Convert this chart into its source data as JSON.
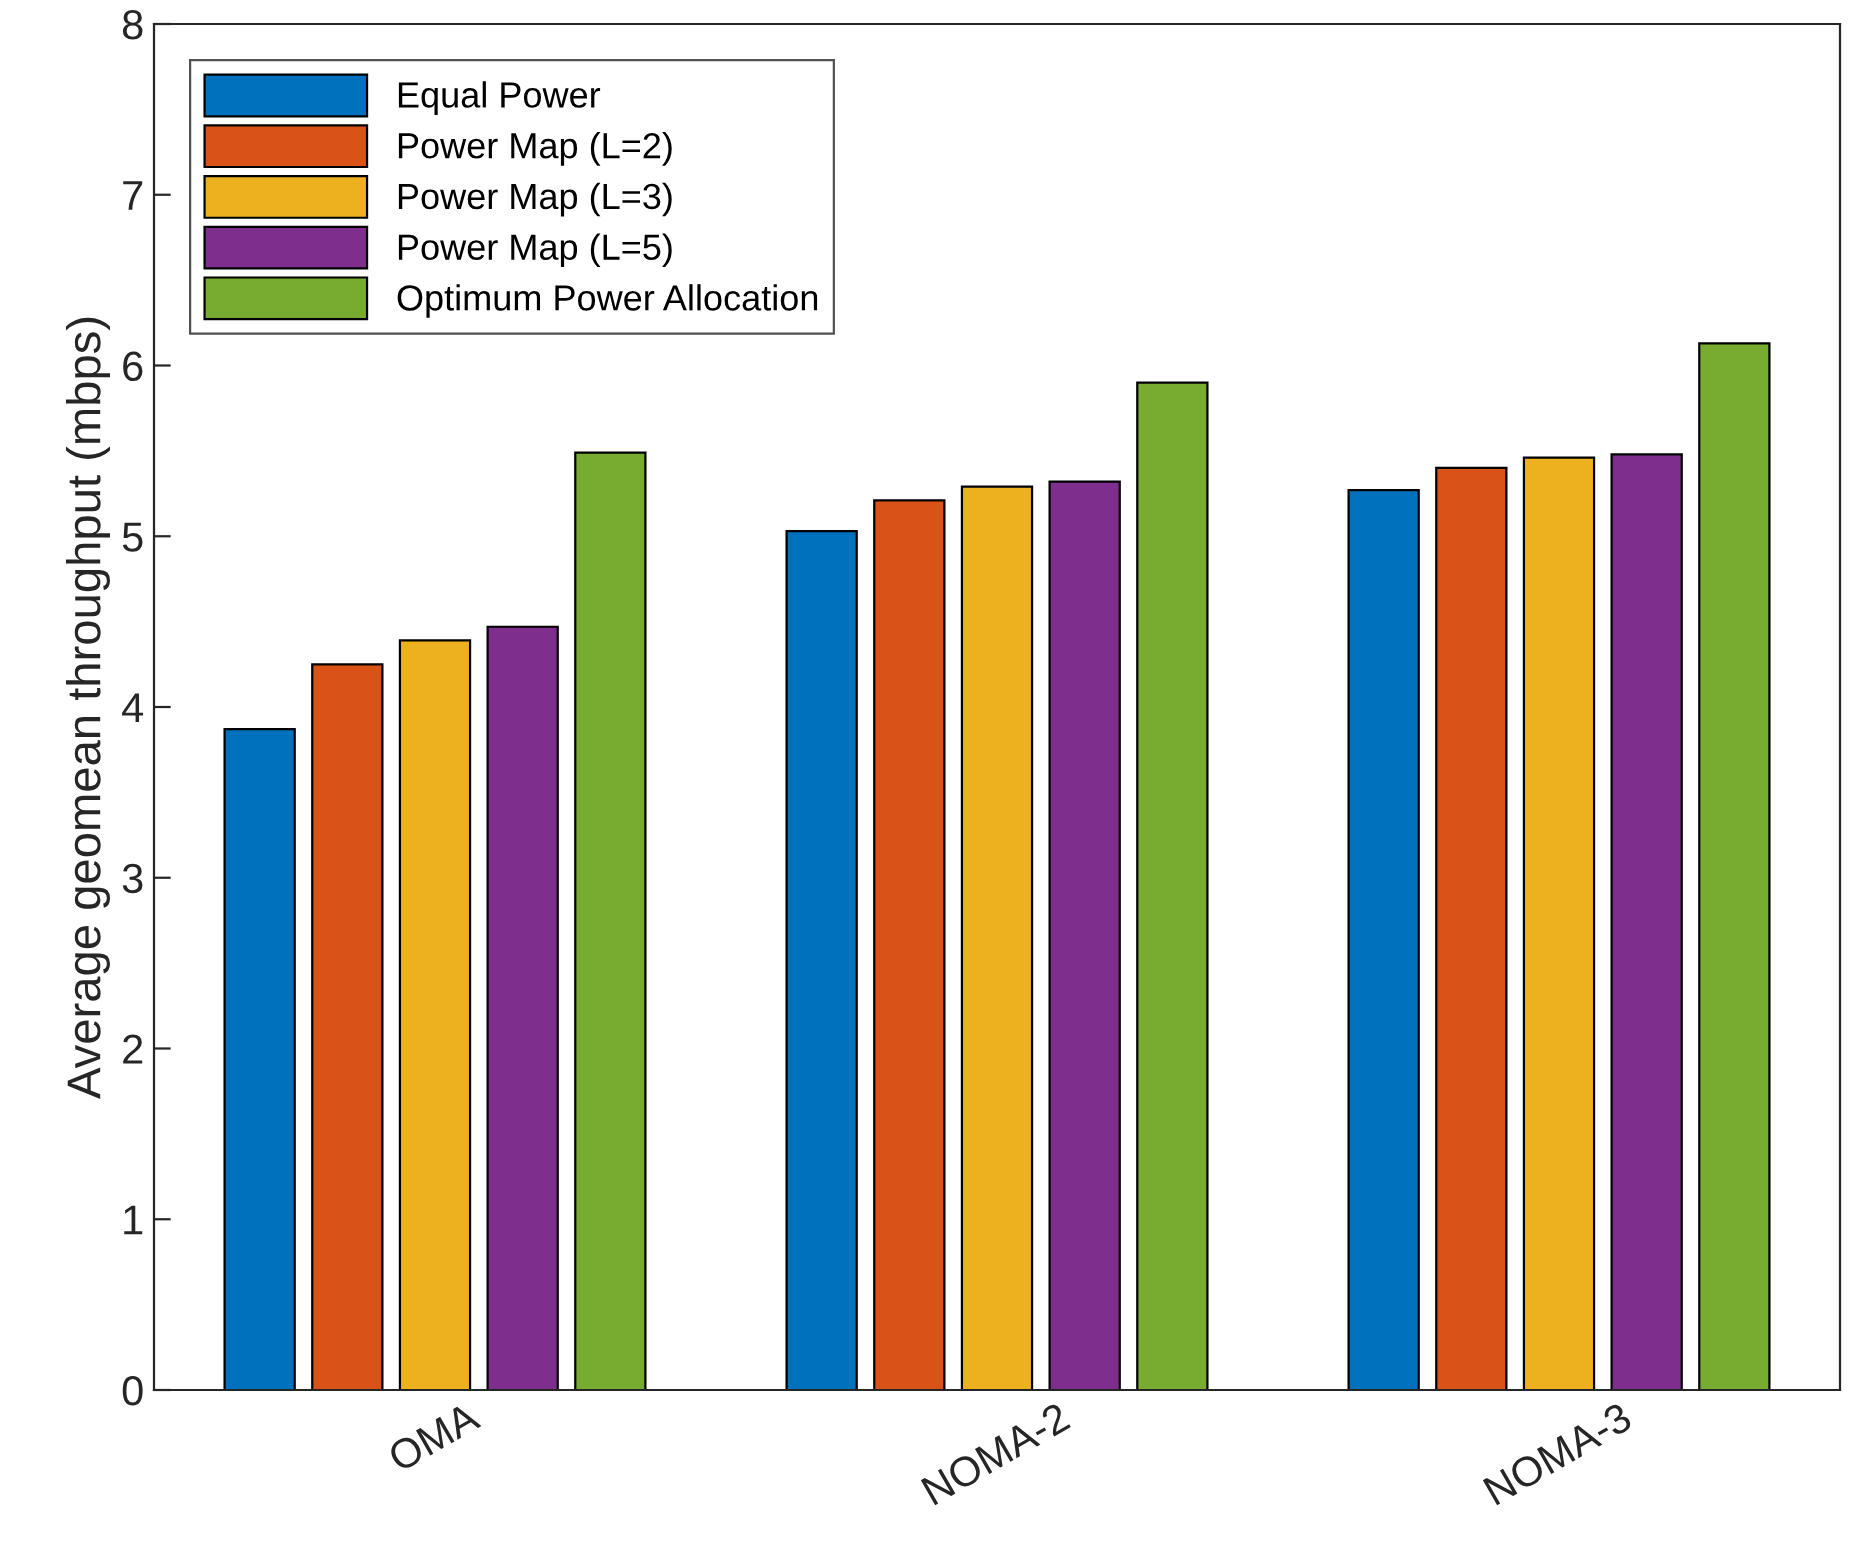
{
  "chart_data": {
    "type": "bar",
    "ylabel": "Average geomean throughput (mbps)",
    "categories": [
      "OMA",
      "NOMA-2",
      "NOMA-3"
    ],
    "series": [
      {
        "name": "Equal Power",
        "color": "#0072bd",
        "values": [
          3.87,
          5.03,
          5.27
        ]
      },
      {
        "name": "Power Map (L=2)",
        "color": "#d95319",
        "values": [
          4.25,
          5.21,
          5.4
        ]
      },
      {
        "name": "Power Map (L=3)",
        "color": "#edb120",
        "values": [
          4.39,
          5.29,
          5.46
        ]
      },
      {
        "name": "Power Map (L=5)",
        "color": "#7e2f8e",
        "values": [
          4.47,
          5.32,
          5.48
        ]
      },
      {
        "name": "Optimum Power Allocation",
        "color": "#77ac30",
        "values": [
          5.49,
          5.9,
          6.13
        ]
      }
    ],
    "ylim": [
      0,
      8
    ],
    "yticks": [
      0,
      1,
      2,
      3,
      4,
      5,
      6,
      7,
      8
    ],
    "grid": false,
    "legend": "top left"
  }
}
